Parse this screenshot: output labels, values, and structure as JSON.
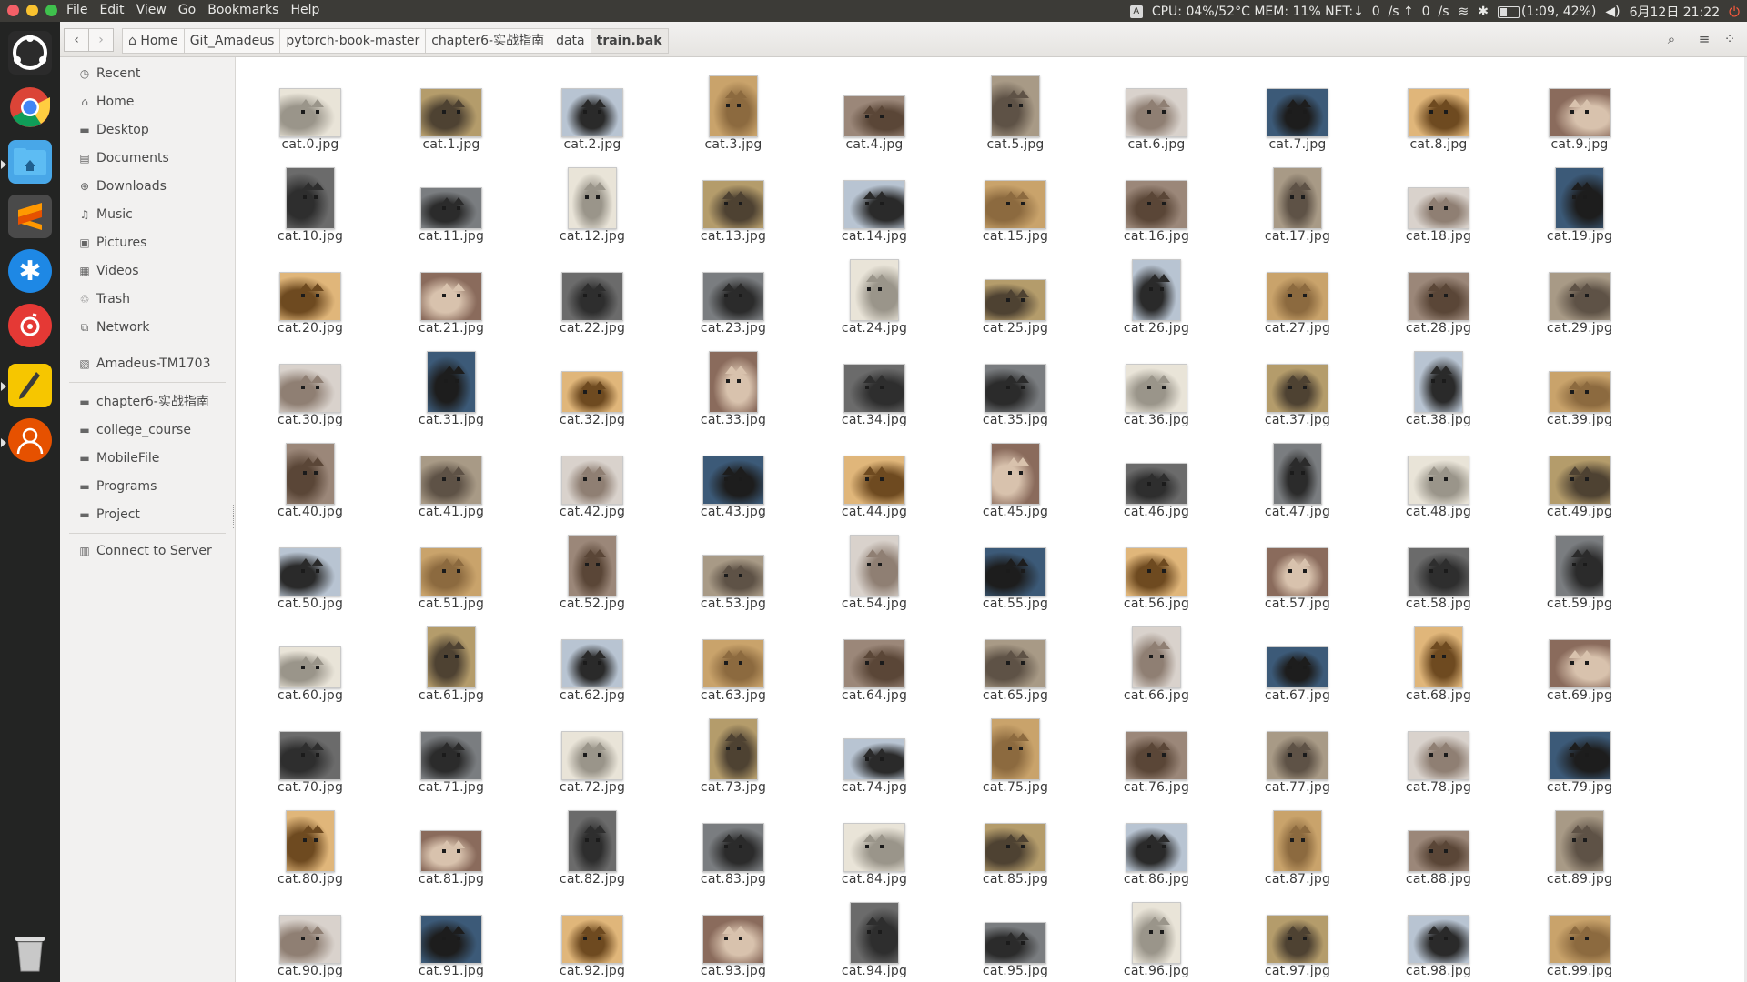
{
  "panel": {
    "menus": [
      "File",
      "Edit",
      "View",
      "Go",
      "Bookmarks",
      "Help"
    ],
    "indicators": {
      "keyboard": "A",
      "sysmon": "CPU: 04%/52°C MEM: 11% NET:↓  0  /s ↑  0  /s",
      "battery": "(1:09, 42%)",
      "clock": "6月12日 21:22"
    }
  },
  "launcher": {
    "apps": [
      "ubuntu-dash-icon",
      "chrome-icon",
      "files-icon",
      "sublime-text-icon",
      "app-store-icon",
      "netease-music-icon",
      "notes-icon",
      "user-avatar-icon",
      "trash-icon"
    ]
  },
  "toolbar": {
    "back": "‹",
    "forward": "›",
    "breadcrumb": [
      "Home",
      "Git_Amadeus",
      "pytorch-book-master",
      "chapter6-实战指南",
      "data",
      "train.bak"
    ]
  },
  "sidebar": {
    "places": [
      {
        "label": "Recent",
        "icon": "clock-icon",
        "glyph": "◷"
      },
      {
        "label": "Home",
        "icon": "home-icon",
        "glyph": "⌂"
      },
      {
        "label": "Desktop",
        "icon": "folder-icon",
        "glyph": "▬"
      },
      {
        "label": "Documents",
        "icon": "documents-icon",
        "glyph": "▤"
      },
      {
        "label": "Downloads",
        "icon": "downloads-icon",
        "glyph": "⊕"
      },
      {
        "label": "Music",
        "icon": "music-icon",
        "glyph": "♫"
      },
      {
        "label": "Pictures",
        "icon": "pictures-icon",
        "glyph": "▣"
      },
      {
        "label": "Videos",
        "icon": "videos-icon",
        "glyph": "▦"
      },
      {
        "label": "Trash",
        "icon": "trash-icon",
        "glyph": "♲"
      },
      {
        "label": "Network",
        "icon": "network-icon",
        "glyph": "⧉"
      }
    ],
    "devices": [
      {
        "label": "Amadeus-TM1703",
        "icon": "drive-icon",
        "glyph": "▧"
      }
    ],
    "bookmarks": [
      {
        "label": "chapter6-实战指南",
        "icon": "folder-icon",
        "glyph": "▬"
      },
      {
        "label": "college_course",
        "icon": "folder-icon",
        "glyph": "▬"
      },
      {
        "label": "MobileFile",
        "icon": "folder-icon",
        "glyph": "▬"
      },
      {
        "label": "Programs",
        "icon": "folder-icon",
        "glyph": "▬"
      },
      {
        "label": "Project",
        "icon": "folder-icon",
        "glyph": "▬"
      }
    ],
    "connect": {
      "label": "Connect to Server",
      "icon": "server-icon",
      "glyph": "▥"
    }
  },
  "files": [
    "cat.0.jpg",
    "cat.1.jpg",
    "cat.2.jpg",
    "cat.3.jpg",
    "cat.4.jpg",
    "cat.5.jpg",
    "cat.6.jpg",
    "cat.7.jpg",
    "cat.8.jpg",
    "cat.9.jpg",
    "cat.10.jpg",
    "cat.11.jpg",
    "cat.12.jpg",
    "cat.13.jpg",
    "cat.14.jpg",
    "cat.15.jpg",
    "cat.16.jpg",
    "cat.17.jpg",
    "cat.18.jpg",
    "cat.19.jpg",
    "cat.20.jpg",
    "cat.21.jpg",
    "cat.22.jpg",
    "cat.23.jpg",
    "cat.24.jpg",
    "cat.25.jpg",
    "cat.26.jpg",
    "cat.27.jpg",
    "cat.28.jpg",
    "cat.29.jpg",
    "cat.30.jpg",
    "cat.31.jpg",
    "cat.32.jpg",
    "cat.33.jpg",
    "cat.34.jpg",
    "cat.35.jpg",
    "cat.36.jpg",
    "cat.37.jpg",
    "cat.38.jpg",
    "cat.39.jpg",
    "cat.40.jpg",
    "cat.41.jpg",
    "cat.42.jpg",
    "cat.43.jpg",
    "cat.44.jpg",
    "cat.45.jpg",
    "cat.46.jpg",
    "cat.47.jpg",
    "cat.48.jpg",
    "cat.49.jpg",
    "cat.50.jpg",
    "cat.51.jpg",
    "cat.52.jpg",
    "cat.53.jpg",
    "cat.54.jpg",
    "cat.55.jpg",
    "cat.56.jpg",
    "cat.57.jpg",
    "cat.58.jpg",
    "cat.59.jpg",
    "cat.60.jpg",
    "cat.61.jpg",
    "cat.62.jpg",
    "cat.63.jpg",
    "cat.64.jpg",
    "cat.65.jpg",
    "cat.66.jpg",
    "cat.67.jpg",
    "cat.68.jpg",
    "cat.69.jpg",
    "cat.70.jpg",
    "cat.71.jpg",
    "cat.72.jpg",
    "cat.73.jpg",
    "cat.74.jpg",
    "cat.75.jpg",
    "cat.76.jpg",
    "cat.77.jpg",
    "cat.78.jpg",
    "cat.79.jpg",
    "cat.80.jpg",
    "cat.81.jpg",
    "cat.82.jpg",
    "cat.83.jpg",
    "cat.84.jpg",
    "cat.85.jpg",
    "cat.86.jpg",
    "cat.87.jpg",
    "cat.88.jpg",
    "cat.89.jpg",
    "cat.90.jpg",
    "cat.91.jpg",
    "cat.92.jpg",
    "cat.93.jpg",
    "cat.94.jpg",
    "cat.95.jpg",
    "cat.96.jpg",
    "cat.97.jpg",
    "cat.98.jpg",
    "cat.99.jpg"
  ]
}
